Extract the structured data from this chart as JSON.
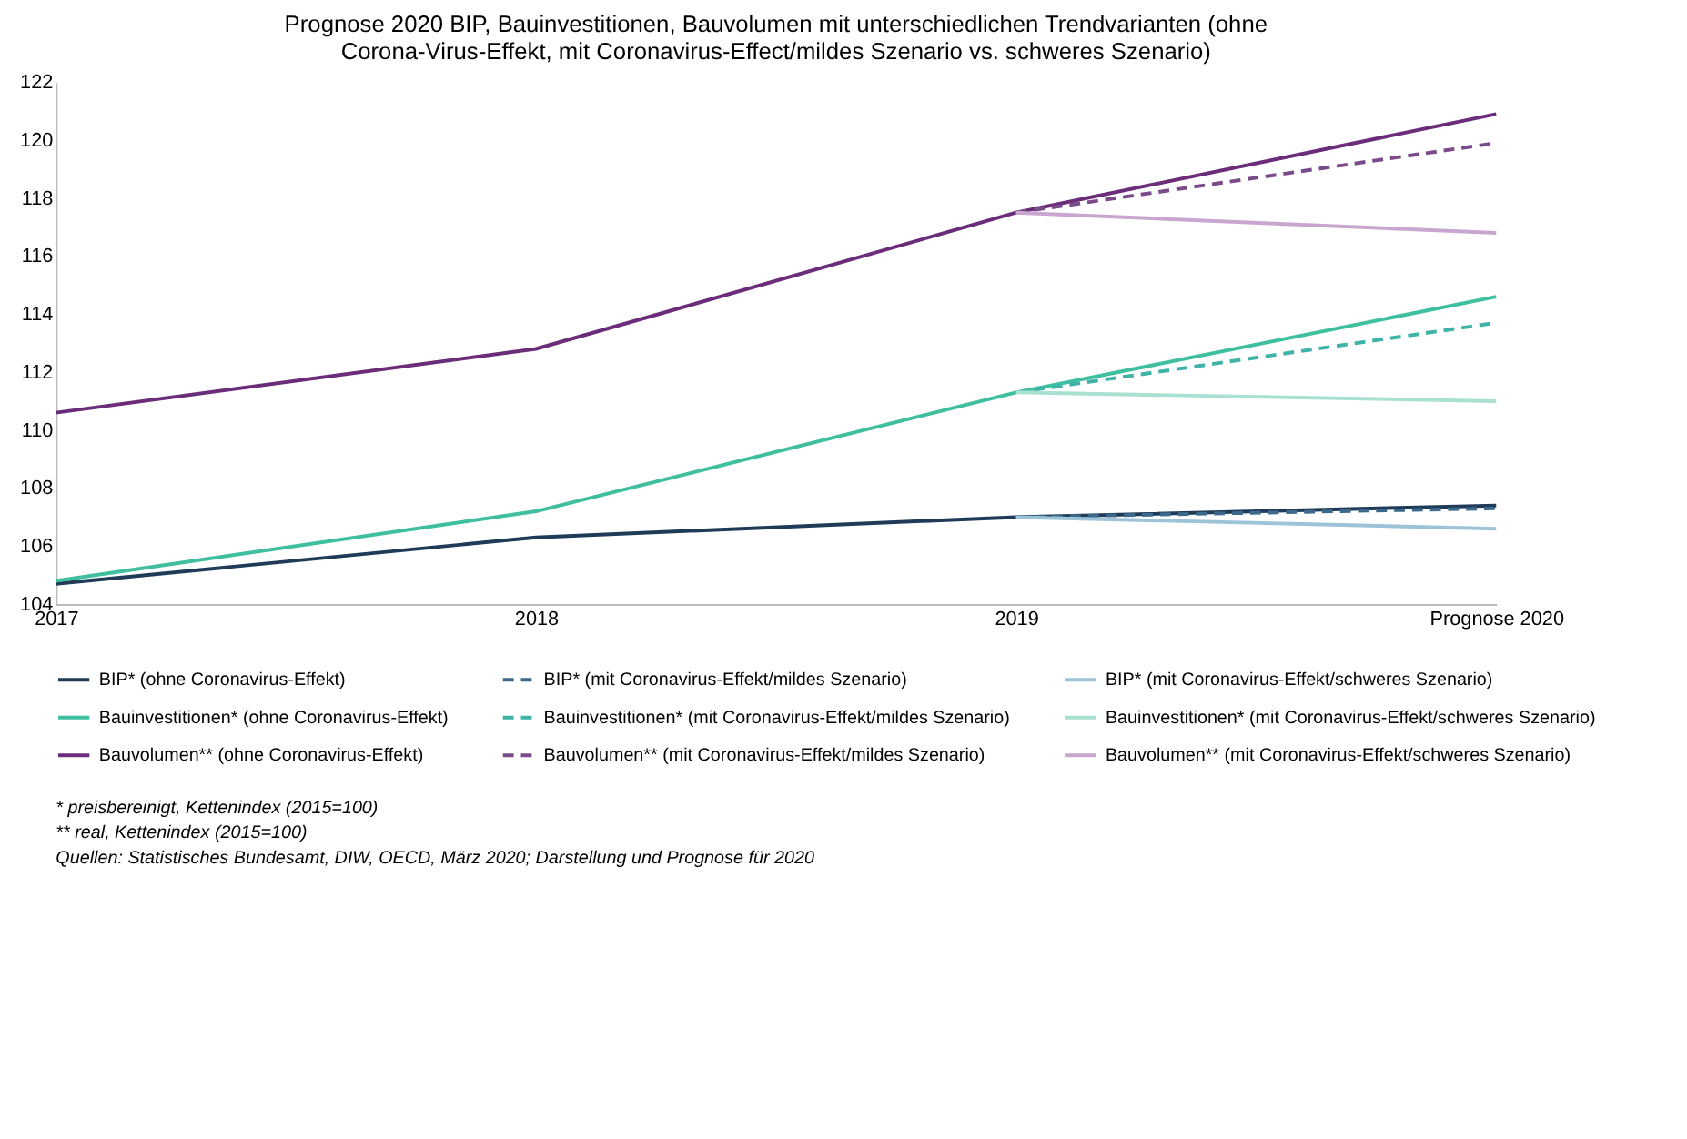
{
  "chart_data": {
    "type": "line",
    "title": "Prognose 2020 BIP, Bauinvestitionen, Bauvolumen mit unterschiedlichen Trendvarianten (ohne\nCorona-Virus-Effekt, mit Coronavirus-Effect/mildes Szenario vs. schweres Szenario)",
    "categories": [
      "2017",
      "2018",
      "2019",
      "Prognose 2020"
    ],
    "ylim": [
      104,
      122
    ],
    "yticks": [
      104,
      106,
      108,
      110,
      112,
      114,
      116,
      118,
      120,
      122
    ],
    "grid": false,
    "legend": "bottom",
    "marker": "none",
    "series": [
      {
        "name": "BIP* (ohne Coronavirus-Effekt)",
        "color": "#1f3b57",
        "line_style": "solid",
        "values": [
          104.7,
          106.3,
          107.0,
          107.4
        ]
      },
      {
        "name": "Bauinvestitionen* (ohne Coronavirus-Effekt)",
        "color": "#3fbfa0",
        "line_style": "solid",
        "values": [
          104.8,
          107.2,
          111.3,
          114.6
        ]
      },
      {
        "name": "Bauvolumen** (ohne Coronavirus-Effekt)",
        "color": "#6b2d7a",
        "line_style": "solid",
        "values": [
          110.6,
          112.8,
          117.5,
          120.9
        ]
      },
      {
        "name": "BIP* (mit Coronavirus-Effekt/mildes Szenario)",
        "color": "#3d6a8a",
        "line_style": "dashed",
        "values": [
          null,
          null,
          107.0,
          107.3
        ]
      },
      {
        "name": "Bauinvestitionen* (mit Coronavirus-Effekt/mildes Szenario)",
        "color": "#3fb3a8",
        "line_style": "dashed",
        "values": [
          null,
          null,
          111.3,
          113.7
        ]
      },
      {
        "name": "Bauvolumen** (mit Coronavirus-Effekt/mildes Szenario)",
        "color": "#7a4a8a",
        "line_style": "dashed",
        "values": [
          null,
          null,
          117.5,
          119.9
        ]
      },
      {
        "name": "BIP* (mit Coronavirus-Effekt/schweres Szenario)",
        "color": "#9cc3d8",
        "line_style": "solid",
        "values": [
          null,
          null,
          107.0,
          106.6
        ]
      },
      {
        "name": "Bauinvestitionen* (mit Coronavirus-Effekt/schweres Szenario)",
        "color": "#a8e0d2",
        "line_style": "solid",
        "values": [
          null,
          null,
          111.3,
          111.0
        ]
      },
      {
        "name": "Bauvolumen** (mit Coronavirus-Effekt/schweres Szenario)",
        "color": "#c9a6cf",
        "line_style": "solid",
        "values": [
          null,
          null,
          117.5,
          116.8
        ]
      }
    ],
    "annotations": [
      "* preisbereinigt, Kettenindex (2015=100)",
      "** real, Kettenindex (2015=100)",
      "Quellen: Statistisches Bundesamt, DIW, OECD, März 2020; Darstellung und Prognose für 2020"
    ]
  }
}
